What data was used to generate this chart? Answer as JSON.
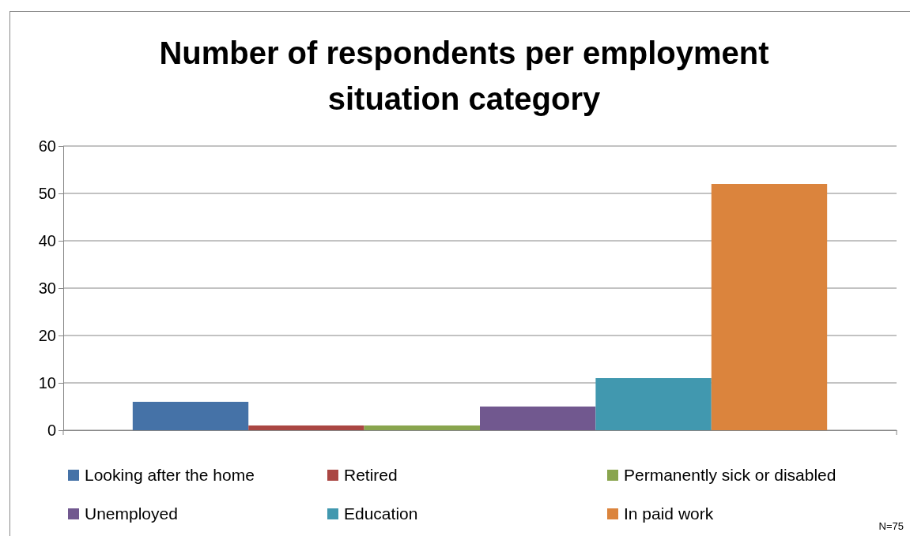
{
  "chart_data": {
    "type": "bar",
    "title": "Number of respondents per employment situation category",
    "categories": [
      null
    ],
    "series": [
      {
        "name": "Looking after the home",
        "color": "#4572a7",
        "values": [
          6
        ]
      },
      {
        "name": "Retired",
        "color": "#aa4643",
        "values": [
          1
        ]
      },
      {
        "name": "Permanently sick or disabled",
        "color": "#89a54e",
        "values": [
          1
        ]
      },
      {
        "name": "Unemployed",
        "color": "#71588f",
        "values": [
          5
        ]
      },
      {
        "name": "Education",
        "color": "#4198af",
        "values": [
          11
        ]
      },
      {
        "name": "In paid work",
        "color": "#db843d",
        "values": [
          52
        ]
      }
    ],
    "ylim": [
      0,
      60
    ],
    "yticks": [
      0,
      10,
      20,
      30,
      40,
      50,
      60
    ],
    "grid": "y",
    "legend": "bottom",
    "annotations": [
      "N=75"
    ]
  }
}
